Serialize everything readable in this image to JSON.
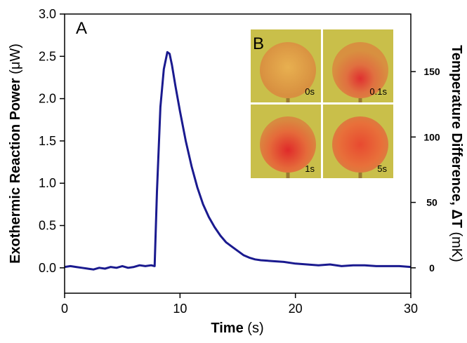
{
  "chart_data": {
    "type": "line",
    "annotation_a": "A",
    "annotation_b": "B",
    "x_label": "Time",
    "x_unit": "(s)",
    "y_label": "Exothermic Reaction Power",
    "y_unit": "(μW)",
    "y2_label": "Temperature Difference, ΔT",
    "y2_unit": "(mK)",
    "inset_labels": [
      "0s",
      "0.1s",
      "1s",
      "5s"
    ],
    "x": [
      0,
      0.5,
      1,
      1.5,
      2,
      2.5,
      3,
      3.5,
      4,
      4.5,
      5,
      5.5,
      6,
      6.5,
      7,
      7.5,
      7.8,
      8.0,
      8.3,
      8.6,
      8.9,
      9.1,
      9.3,
      9.6,
      10,
      10.5,
      11,
      11.5,
      12,
      12.5,
      13,
      13.5,
      14,
      14.5,
      15,
      15.5,
      16,
      16.5,
      17,
      18,
      19,
      20,
      21,
      22,
      23,
      24,
      25,
      26,
      27,
      28,
      29,
      30
    ],
    "values": [
      0.01,
      0.02,
      0.01,
      0.0,
      -0.01,
      -0.02,
      0.0,
      -0.01,
      0.01,
      0.0,
      0.02,
      0.0,
      0.01,
      0.03,
      0.02,
      0.03,
      0.02,
      0.9,
      1.9,
      2.35,
      2.55,
      2.53,
      2.4,
      2.15,
      1.85,
      1.5,
      1.2,
      0.95,
      0.75,
      0.6,
      0.48,
      0.38,
      0.3,
      0.25,
      0.2,
      0.15,
      0.12,
      0.1,
      0.09,
      0.08,
      0.07,
      0.05,
      0.04,
      0.03,
      0.04,
      0.02,
      0.03,
      0.03,
      0.02,
      0.02,
      0.02,
      0.01
    ],
    "color": "#1a1a8f",
    "xlim": [
      0,
      30
    ],
    "xticks": [
      0,
      10,
      20,
      30
    ],
    "ylim": [
      -0.3,
      3.0
    ],
    "yticks": [
      {
        "value": 0,
        "label": "0.0"
      },
      {
        "value": 0.5,
        "label": "0.5"
      },
      {
        "value": 1,
        "label": "1.0"
      },
      {
        "value": 1.5,
        "label": "1.5"
      },
      {
        "value": 2,
        "label": "2.0"
      },
      {
        "value": 2.5,
        "label": "2.5"
      },
      {
        "value": 3,
        "label": "3.0"
      }
    ],
    "y2lim": [
      -19.4,
      194
    ],
    "y2ticks": [
      0,
      50,
      100,
      150
    ]
  }
}
